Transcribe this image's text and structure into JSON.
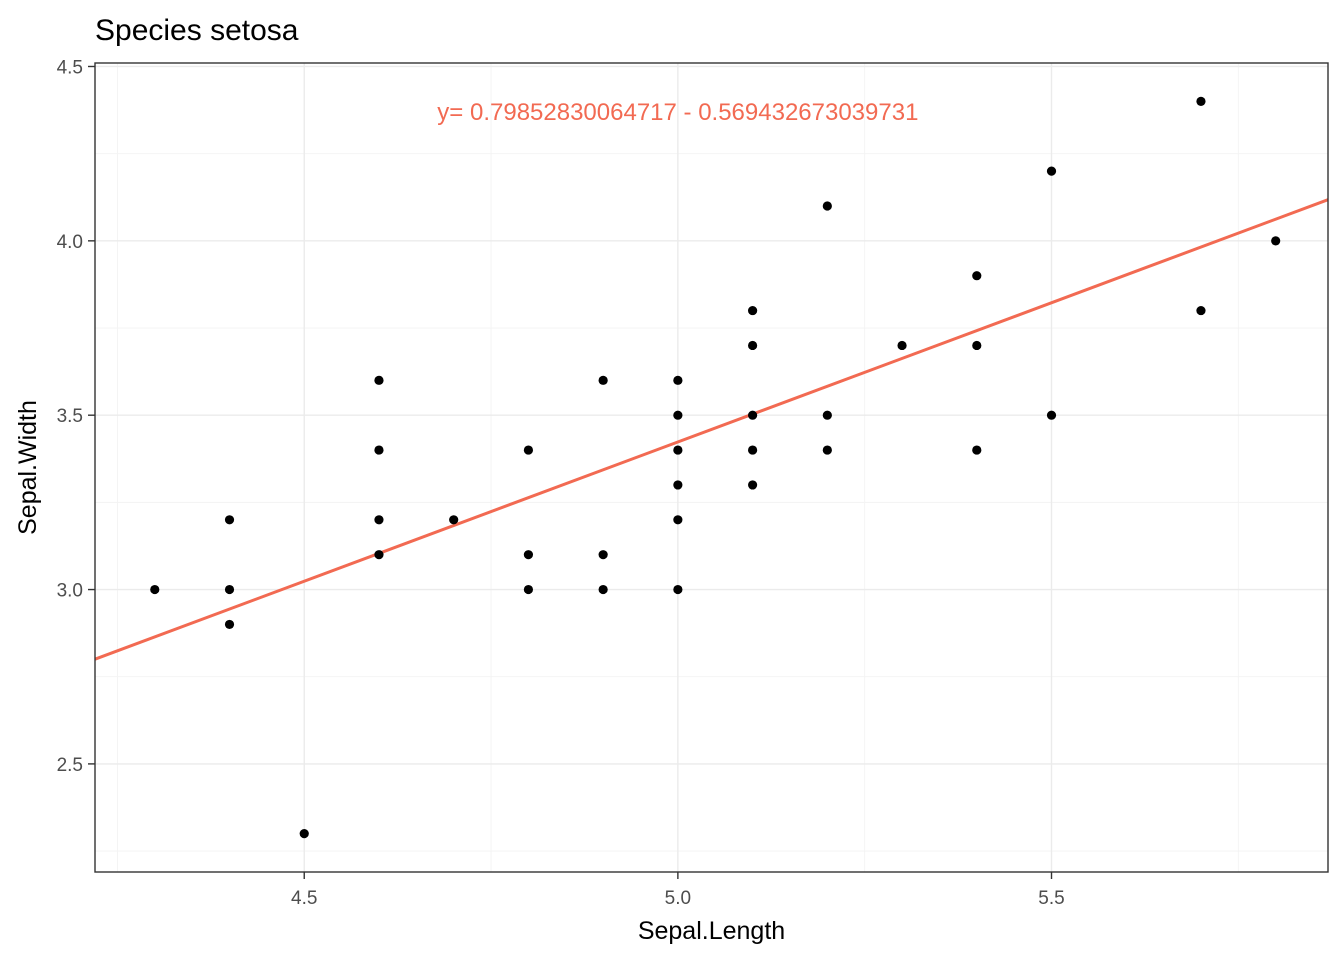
{
  "chart_data": {
    "type": "scatter",
    "title": "Species setosa",
    "xlabel": "Sepal.Length",
    "ylabel": "Sepal.Width",
    "xlim": [
      4.22,
      5.87
    ],
    "ylim": [
      2.19,
      4.51
    ],
    "x_ticks": [
      4.5,
      5.0,
      5.5
    ],
    "x_tick_labels": [
      "4.5",
      "5.0",
      "5.5"
    ],
    "y_ticks": [
      2.5,
      3.0,
      3.5,
      4.0,
      4.5
    ],
    "y_tick_labels": [
      "2.5",
      "3.0",
      "3.5",
      "4.0",
      "4.5"
    ],
    "grid": true,
    "theme": "bw",
    "point_color": "#000000",
    "line_color": "#f26a52",
    "annotation": {
      "text": "y= 0.79852830064717 - 0.569432673039731",
      "x": 5.0,
      "y": 4.37,
      "color": "#f26a52"
    },
    "regression_line": {
      "slope": 0.79852830064717,
      "intercept": -0.569432673039731
    },
    "points": [
      {
        "x": 4.3,
        "y": 3.0
      },
      {
        "x": 4.4,
        "y": 3.2
      },
      {
        "x": 4.4,
        "y": 3.0
      },
      {
        "x": 4.4,
        "y": 2.9
      },
      {
        "x": 4.5,
        "y": 2.3
      },
      {
        "x": 4.6,
        "y": 3.6
      },
      {
        "x": 4.6,
        "y": 3.4
      },
      {
        "x": 4.6,
        "y": 3.2
      },
      {
        "x": 4.6,
        "y": 3.1
      },
      {
        "x": 4.7,
        "y": 3.2
      },
      {
        "x": 4.8,
        "y": 3.4
      },
      {
        "x": 4.8,
        "y": 3.1
      },
      {
        "x": 4.8,
        "y": 3.0
      },
      {
        "x": 4.9,
        "y": 3.6
      },
      {
        "x": 4.9,
        "y": 3.1
      },
      {
        "x": 4.9,
        "y": 3.0
      },
      {
        "x": 5.0,
        "y": 3.6
      },
      {
        "x": 5.0,
        "y": 3.5
      },
      {
        "x": 5.0,
        "y": 3.4
      },
      {
        "x": 5.0,
        "y": 3.3
      },
      {
        "x": 5.0,
        "y": 3.2
      },
      {
        "x": 5.0,
        "y": 3.0
      },
      {
        "x": 5.1,
        "y": 3.8
      },
      {
        "x": 5.1,
        "y": 3.7
      },
      {
        "x": 5.1,
        "y": 3.5
      },
      {
        "x": 5.1,
        "y": 3.4
      },
      {
        "x": 5.1,
        "y": 3.3
      },
      {
        "x": 5.2,
        "y": 4.1
      },
      {
        "x": 5.2,
        "y": 3.5
      },
      {
        "x": 5.2,
        "y": 3.4
      },
      {
        "x": 5.3,
        "y": 3.7
      },
      {
        "x": 5.4,
        "y": 3.9
      },
      {
        "x": 5.4,
        "y": 3.7
      },
      {
        "x": 5.4,
        "y": 3.4
      },
      {
        "x": 5.5,
        "y": 4.2
      },
      {
        "x": 5.5,
        "y": 3.5
      },
      {
        "x": 5.7,
        "y": 4.4
      },
      {
        "x": 5.7,
        "y": 3.8
      },
      {
        "x": 5.8,
        "y": 4.0
      }
    ]
  }
}
